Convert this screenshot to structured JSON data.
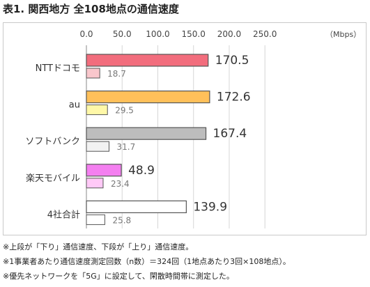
{
  "title": "表1. 関西地方 全108地点の通信速度",
  "notes": [
    "※上段が「下り」通信速度、下段が「上り」通信速度。",
    "※1事業者あたり通信速度測定回数（n数）＝324回（1地点あたり3回×108地点）。",
    "※優先ネットワークを「5G」に設定して、閑散時間帯に測定した。"
  ],
  "chart_data": {
    "type": "bar",
    "orientation": "horizontal",
    "unit_label": "（Mbps）",
    "xlim": [
      0,
      250
    ],
    "ticks": [
      "0.0",
      "50.0",
      "100.0",
      "150.0",
      "200.0",
      "250.0"
    ],
    "tick_values": [
      0,
      50,
      100,
      150,
      200,
      250
    ],
    "grid": true,
    "categories": [
      "NTTドコモ",
      "au",
      "ソフトバンク",
      "楽天モバイル",
      "4社合計"
    ],
    "series": [
      {
        "values": [
          170.5,
          172.6,
          167.4,
          48.9,
          139.9
        ],
        "labels": [
          "170.5",
          "172.6",
          "167.4",
          "48.9",
          "139.9"
        ]
      },
      {
        "values": [
          18.7,
          29.5,
          31.7,
          23.4,
          25.8
        ],
        "labels": [
          "18.7",
          "29.5",
          "31.7",
          "23.4",
          "25.8"
        ]
      }
    ],
    "colors": {
      "download": [
        "#f26d7d",
        "#ffc05a",
        "#bdbdbd",
        "#f47ff0",
        "#ffffff"
      ],
      "upload": [
        "#f9c7cc",
        "#fff8a8",
        "#f2f2f2",
        "#ffc9f7",
        "#ffffff"
      ],
      "stroke": "#555555",
      "grid": "#d6d6d6"
    }
  }
}
